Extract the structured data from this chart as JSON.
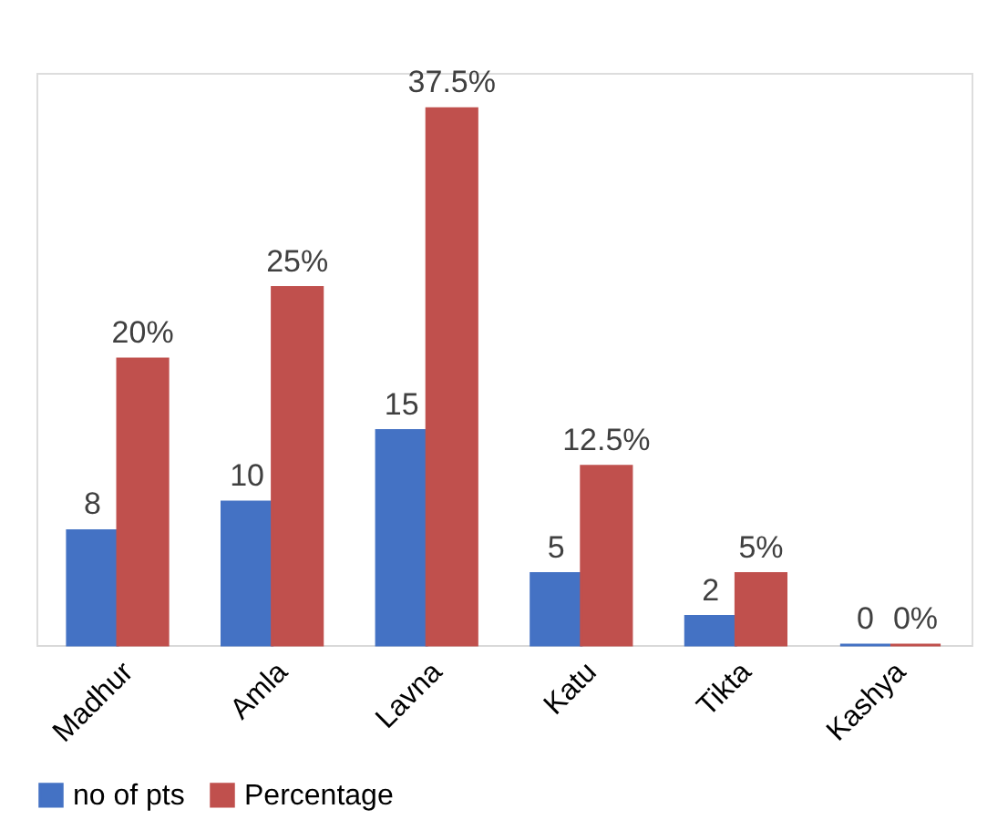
{
  "chart_data": {
    "type": "bar",
    "categories": [
      "Madhur",
      "Amla",
      "Lavna",
      "Katu",
      "Tikta",
      "Kashya"
    ],
    "series": [
      {
        "name": "no of pts",
        "color": "#4472c4",
        "values": [
          8,
          10,
          15,
          5,
          2,
          0
        ],
        "value_labels": [
          "8",
          "10",
          "15",
          "5",
          "2",
          "0"
        ]
      },
      {
        "name": "Percentage",
        "color": "#c0504d",
        "values": [
          20,
          25,
          37.5,
          12.5,
          5,
          0
        ],
        "value_labels": [
          "20%",
          "25%",
          "37.5%",
          "12.5%",
          "5%",
          "0%"
        ]
      }
    ],
    "legend": "bottom",
    "grid": false
  }
}
